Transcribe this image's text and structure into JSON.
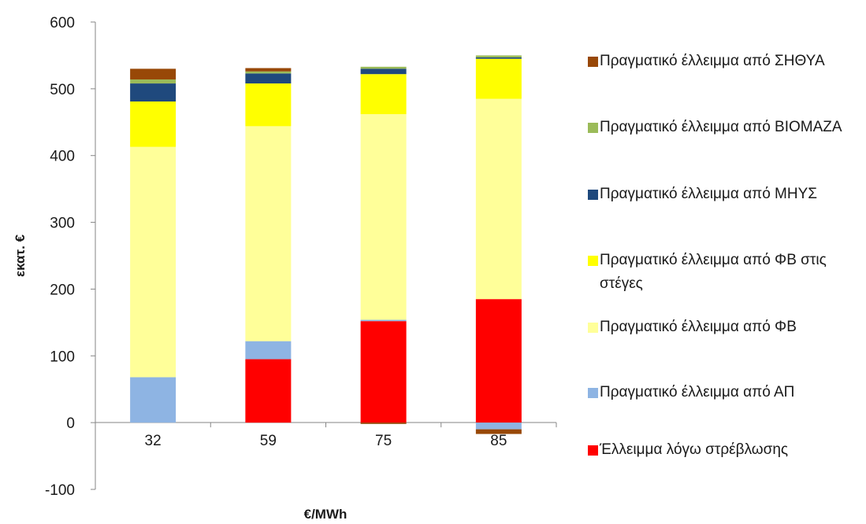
{
  "chart_data": {
    "type": "bar",
    "stacked": true,
    "categories": [
      "32",
      "59",
      "75",
      "85"
    ],
    "xlabel": "€/MWh",
    "ylabel": "εκατ. €",
    "ylim": [
      -100,
      600
    ],
    "yticks": [
      -100,
      0,
      100,
      200,
      300,
      400,
      500,
      600
    ],
    "grid": false,
    "legend_position": "right",
    "series": [
      {
        "name": "Έλλειμμα λόγω στρέβλωσης",
        "color": "#ff0000",
        "values": [
          0,
          95,
          152,
          185
        ]
      },
      {
        "name": "Πραγματικό έλλειμμα από ΑΠ",
        "color": "#8eb4e3",
        "values": [
          68,
          27,
          2,
          -10
        ]
      },
      {
        "name": "Πραγματικό έλλειμμα από ΦΒ",
        "color": "#ffff99",
        "values": [
          345,
          322,
          308,
          300
        ]
      },
      {
        "name": "Πραγματικό έλλειμμα από ΦΒ στις στέγες",
        "color": "#ffff00",
        "values": [
          68,
          64,
          60,
          60
        ]
      },
      {
        "name": "Πραγματικό έλλειμμα από ΜΗΥΣ",
        "color": "#1f497d",
        "values": [
          27,
          15,
          8,
          2
        ]
      },
      {
        "name": "Πραγματικό έλλειμμα από ΒΙΟΜΑΖΑ",
        "color": "#9bbb59",
        "values": [
          6,
          3,
          3,
          3
        ]
      },
      {
        "name": "Πραγματικό έλλειμμα από ΣΗΘΥΑ",
        "color": "#984807",
        "values": [
          16,
          5,
          -2,
          -7
        ]
      }
    ]
  }
}
